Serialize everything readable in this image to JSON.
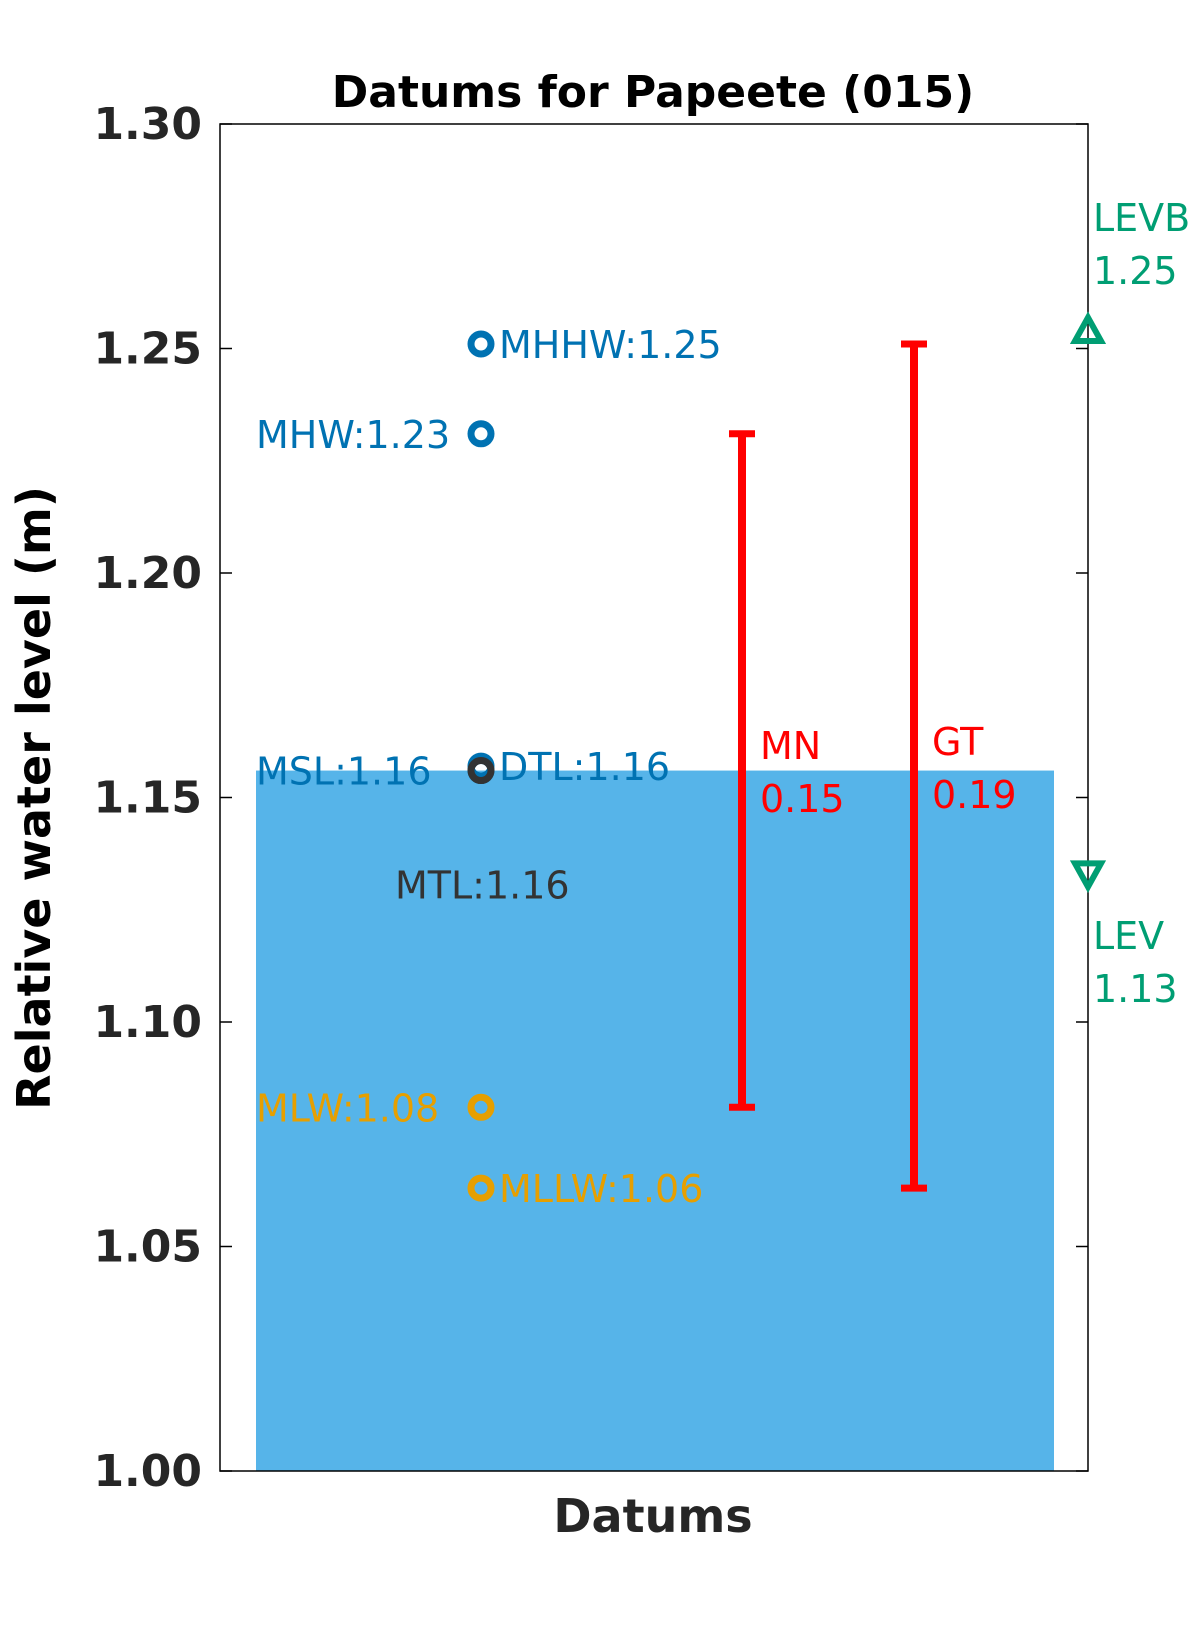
{
  "chart_data": {
    "type": "bar",
    "title": "Datums for Papeete (015)",
    "xlabel": "Datums",
    "ylabel": "Relative water level (m)",
    "ylim": [
      1.0,
      1.3
    ],
    "yticks": [
      "1.00",
      "1.05",
      "1.10",
      "1.15",
      "1.20",
      "1.25",
      "1.30"
    ],
    "grid": false,
    "bar": {
      "value": 1.156,
      "color": "#56B4E9"
    },
    "datums": [
      {
        "name": "MHHW",
        "value": 1.251,
        "label": "MHHW:1.25",
        "color": "#0072B2",
        "side": "right"
      },
      {
        "name": "MHW",
        "value": 1.231,
        "label": "MHW:1.23",
        "color": "#0072B2",
        "side": "left"
      },
      {
        "name": "DTL",
        "value": 1.157,
        "label": "DTL:1.16",
        "color": "#0072B2",
        "side": "right"
      },
      {
        "name": "MSL",
        "value": 1.156,
        "label": "MSL:1.16",
        "color": "#0072B2",
        "side": "left"
      },
      {
        "name": "MTL",
        "value": 1.156,
        "label": "MTL:1.16",
        "color": "#333333",
        "side": "below"
      },
      {
        "name": "MLW",
        "value": 1.081,
        "label": "MLW:1.08",
        "color": "#E69F00",
        "side": "left"
      },
      {
        "name": "MLLW",
        "value": 1.063,
        "label": "MLLW:1.06",
        "color": "#E69F00",
        "side": "right"
      }
    ],
    "ranges": [
      {
        "name": "MN",
        "label": "MN",
        "value_text": "0.15",
        "low": 1.081,
        "high": 1.231,
        "color": "#FF0000"
      },
      {
        "name": "GT",
        "label": "GT",
        "value_text": "0.19",
        "low": 1.063,
        "high": 1.251,
        "color": "#FF0000"
      }
    ],
    "extremes": [
      {
        "name": "LEVB",
        "label": "LEVB",
        "value_text": "1.25",
        "value": 1.254,
        "marker": "triangle-up",
        "color": "#009E73"
      },
      {
        "name": "LEV",
        "label": "LEV",
        "value_text": "1.13",
        "value": 1.133,
        "marker": "triangle-down",
        "color": "#009E73"
      }
    ]
  }
}
